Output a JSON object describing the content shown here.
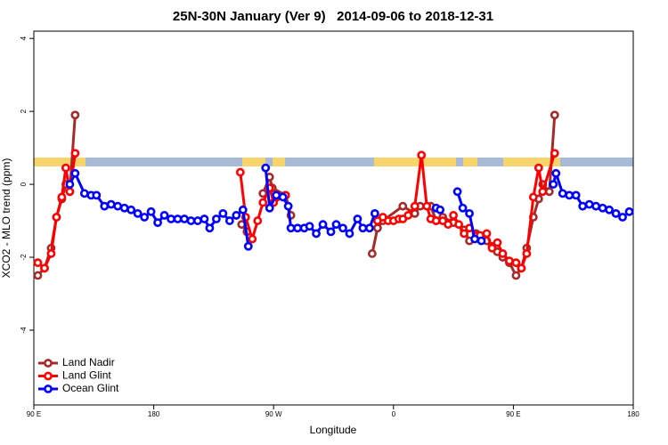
{
  "chart_data": {
    "type": "line",
    "title": "25N-30N January (Ver 9)   2014-09-06 to 2018-12-31",
    "x_label": "Longitude",
    "y_label": "XCO2 - MLO trend (ppm)",
    "xlim": [
      90,
      540
    ],
    "xticks": [
      {
        "value": 90,
        "label": "90 E"
      },
      180,
      {
        "value": 270,
        "label": "90 W"
      },
      {
        "value": 360,
        "label": "0"
      },
      {
        "value": 450,
        "label": "90 E"
      },
      {
        "value": 540,
        "label": "180"
      }
    ],
    "ylim": [
      -6.05,
      4.2
    ],
    "yticks": [
      4,
      2,
      0,
      -2,
      -4
    ],
    "legend": "bottom-left",
    "series": [
      {
        "name": "Land Nadir",
        "color": "#a52a2a",
        "x": [
          93,
          98,
          103,
          107,
          111,
          114,
          117,
          121,
          180,
          246,
          250,
          256,
          262,
          267,
          269,
          279,
          283,
          310,
          344,
          348,
          352,
          367,
          376,
          380,
          388,
          392,
          397,
          405,
          413,
          417,
          422,
          430,
          434,
          438,
          442,
          447,
          452,
          456,
          460,
          465,
          469,
          472,
          477,
          481
        ],
        "values": [
          -2.5,
          -2.3,
          -1.75,
          -0.9,
          -0.4,
          0.0,
          -0.2,
          1.9,
          null,
          -1.1,
          -1.3,
          null,
          -0.25,
          0.2,
          -0.1,
          -0.3,
          -0.85,
          null,
          -1.9,
          -1.2,
          -1.0,
          -0.6,
          -0.8,
          -0.6,
          -0.6,
          -1.0,
          -0.9,
          -1.05,
          -1.25,
          -1.55,
          -1.35,
          -1.55,
          -1.7,
          -1.85,
          -2.0,
          -2.15,
          -2.5,
          -2.3,
          -1.75,
          -0.9,
          -0.4,
          0.0,
          -0.2,
          1.9
        ]
      },
      {
        "name": "Land Glint",
        "color": "#ff0000",
        "x": [
          93,
          98,
          103,
          107,
          111,
          114,
          117,
          121,
          180,
          245,
          249,
          254,
          258,
          262,
          267,
          270,
          279,
          310,
          348,
          352,
          356,
          360,
          364,
          367,
          371,
          376,
          381,
          385,
          388,
          392,
          397,
          401,
          405,
          409,
          413,
          417,
          425,
          430,
          434,
          438,
          442,
          447,
          452,
          456,
          460,
          465,
          469,
          472,
          481
        ],
        "values": [
          -2.15,
          -2.3,
          -1.9,
          -0.9,
          -0.35,
          0.45,
          -0.2,
          0.85,
          null,
          0.33,
          -0.9,
          -1.5,
          -1.0,
          -0.5,
          -0.1,
          -0.5,
          -0.3,
          null,
          -1.0,
          -0.9,
          -1.0,
          -1.0,
          -0.95,
          -0.95,
          -0.85,
          -0.6,
          0.8,
          -0.6,
          -0.95,
          -1.0,
          -1.0,
          -1.1,
          -0.85,
          -1.1,
          -1.35,
          -1.2,
          -1.4,
          -1.35,
          -1.75,
          -1.6,
          -1.9,
          -2.1,
          -2.15,
          -2.3,
          -1.9,
          -0.35,
          0.45,
          -0.2,
          0.85
        ]
      },
      {
        "name": "Ocean Glint",
        "color": "#0000ff",
        "x": [
          117,
          121,
          128,
          133,
          137,
          143,
          148,
          153,
          158,
          163,
          168,
          173,
          178,
          183,
          188,
          193,
          198,
          203,
          208,
          213,
          218,
          222,
          227,
          232,
          237,
          242,
          247,
          251,
          258,
          264,
          267,
          272,
          277,
          281,
          283,
          288,
          293,
          297,
          302,
          307,
          313,
          317,
          322,
          327,
          333,
          337,
          342,
          346,
          370,
          392,
          395,
          402,
          408,
          412,
          417,
          421,
          426,
          450,
          480,
          482,
          487,
          492,
          497,
          502,
          507,
          512,
          517,
          522,
          527,
          532,
          537
        ],
        "values": [
          0.0,
          0.3,
          -0.25,
          -0.3,
          -0.3,
          -0.6,
          -0.55,
          -0.6,
          -0.65,
          -0.7,
          -0.8,
          -0.9,
          -0.75,
          -1.05,
          -0.85,
          -0.95,
          -0.95,
          -0.95,
          -1.0,
          -1.0,
          -0.95,
          -1.2,
          -0.95,
          -0.8,
          -1.0,
          -0.85,
          -0.7,
          -1.7,
          null,
          0.45,
          -0.65,
          -0.3,
          -0.35,
          -0.6,
          -1.2,
          -1.2,
          -1.2,
          -1.15,
          -1.35,
          -1.1,
          -1.3,
          -1.1,
          -1.2,
          -1.35,
          -0.95,
          -1.2,
          -1.2,
          -0.8,
          null,
          -0.65,
          -0.7,
          null,
          -0.2,
          -0.65,
          -0.8,
          -1.5,
          -1.55,
          null,
          0.0,
          0.3,
          -0.25,
          -0.3,
          -0.3,
          -0.6,
          -0.55,
          -0.6,
          -0.65,
          -0.7,
          -0.8,
          -0.9,
          -0.75
        ]
      }
    ]
  }
}
